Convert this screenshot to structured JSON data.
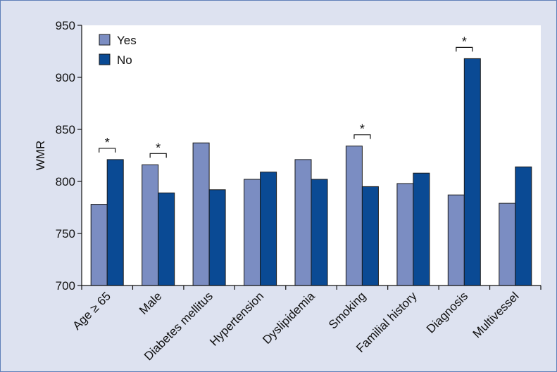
{
  "chart_data": {
    "type": "bar",
    "title": "",
    "xlabel": "",
    "ylabel": "WMR",
    "ylim": [
      700,
      950
    ],
    "yticks": [
      700,
      750,
      800,
      850,
      900,
      950
    ],
    "grid": false,
    "legend_position": "top-left",
    "categories": [
      "Age ≥ 65",
      "Male",
      "Diabetes mellitus",
      "Hypertension",
      "Dyslipidemia",
      "Smoking",
      "Familial history",
      "Diagnosis",
      "Multivessel"
    ],
    "series": [
      {
        "name": "Yes",
        "color": "#7b8dc2",
        "values": [
          778,
          816,
          837,
          802,
          821,
          834,
          798,
          787,
          779
        ]
      },
      {
        "name": "No",
        "color": "#0a4a94",
        "values": [
          821,
          789,
          792,
          809,
          802,
          795,
          808,
          918,
          814
        ]
      }
    ],
    "significance": [
      {
        "category_index": 0,
        "label": "*"
      },
      {
        "category_index": 1,
        "label": "*"
      },
      {
        "category_index": 5,
        "label": "*"
      },
      {
        "category_index": 7,
        "label": "*"
      }
    ]
  },
  "colors": {
    "panel_background": "#dde2f0",
    "panel_border": "#5f7fb8",
    "plot_background": "#ffffff"
  }
}
